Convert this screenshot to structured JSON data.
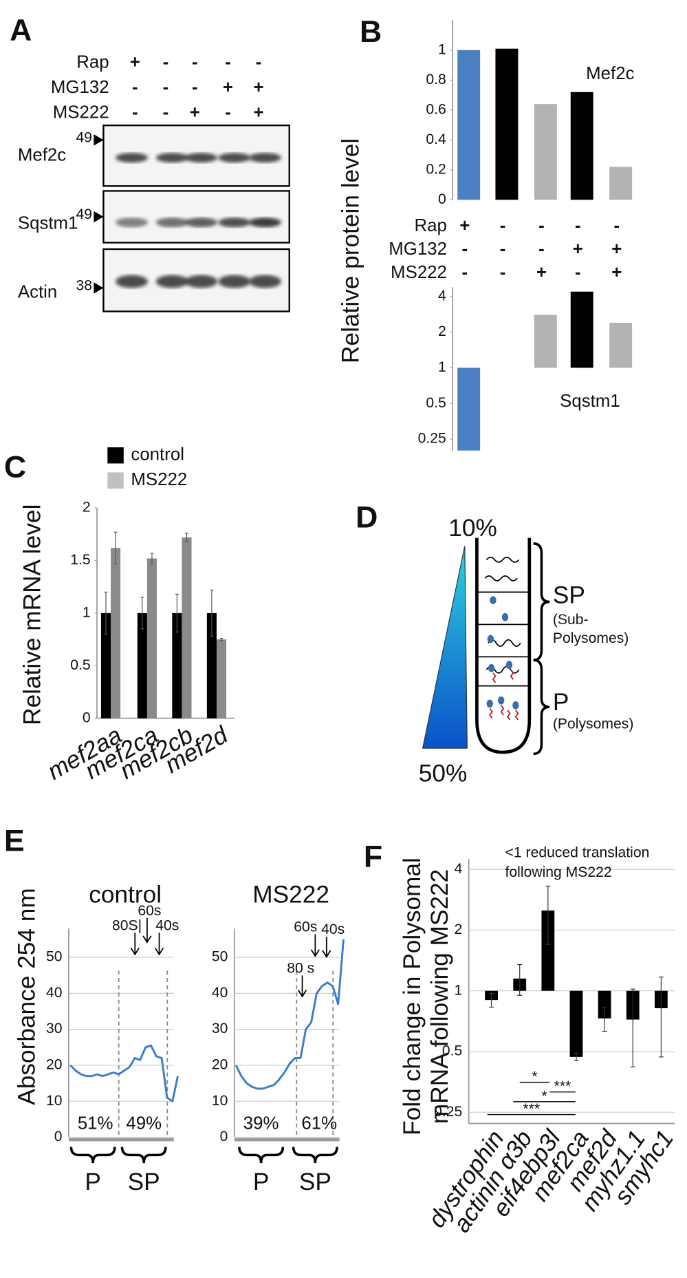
{
  "panel_labels": [
    "A",
    "B",
    "C",
    "D",
    "E",
    "F"
  ],
  "blot": {
    "conditions": [
      {
        "name": "Rap",
        "signs": [
          "+",
          "-",
          "-",
          "-",
          "-"
        ]
      },
      {
        "name": "MG132",
        "signs": [
          "-",
          "-",
          "-",
          "+",
          "+"
        ]
      },
      {
        "name": "MS222",
        "signs": [
          "-",
          "-",
          "+",
          "-",
          "+"
        ]
      }
    ],
    "panels": [
      {
        "name": "Mef2c",
        "marker": "49"
      },
      {
        "name": "Sqstm1",
        "marker": "49"
      },
      {
        "name": "Actin",
        "marker": "38"
      }
    ]
  },
  "panel_b": {
    "ylabel": "Relative protein level",
    "conditions": [
      {
        "name": "Rap",
        "signs": [
          "+",
          "-",
          "-",
          "-",
          "-"
        ]
      },
      {
        "name": "MG132",
        "signs": [
          "-",
          "-",
          "-",
          "+",
          "+"
        ]
      },
      {
        "name": "MS222",
        "signs": [
          "-",
          "-",
          "+",
          "-",
          "+"
        ]
      }
    ]
  },
  "diagram": {
    "top": "10%",
    "bottom": "50%",
    "groups": [
      {
        "name": "SP",
        "detail": [
          "(Sub-",
          "Polysomes)"
        ]
      },
      {
        "name": "P",
        "detail": [
          "(Polysomes)"
        ]
      }
    ]
  },
  "chart_data": [
    {
      "type": "bar",
      "title": "Mef2c",
      "values": [
        1,
        1.01,
        0.64,
        0.72,
        0.22
      ],
      "colors": [
        "#4a7fc1",
        "#000000",
        "#b3b3b3",
        "#000000",
        "#b3b3b3"
      ],
      "ylim": [
        0,
        1.2
      ],
      "yticks": [
        0,
        0.2,
        0.4,
        0.6,
        0.8,
        1
      ]
    },
    {
      "type": "bar",
      "title": "Sqstm1",
      "log_scale": true,
      "values": [
        0.2,
        1,
        2.8,
        4.4,
        2.4
      ],
      "colors": [
        "#4a7fc1",
        "#000000",
        "#b3b3b3",
        "#000000",
        "#b3b3b3"
      ],
      "ylim": [
        0.2,
        4.8
      ],
      "yticks": [
        0.25,
        0.5,
        1,
        2,
        4
      ]
    },
    {
      "type": "grouped_bar",
      "ylabel": "Relative mRNA level",
      "categories": [
        "mef2aa",
        "mef2ca",
        "mef2cb",
        "mef2d"
      ],
      "series": [
        {
          "name": "control",
          "color": "#000000",
          "values": [
            1,
            1,
            1,
            1
          ],
          "errors": [
            0.2,
            0.15,
            0.18,
            0.22
          ]
        },
        {
          "name": "MS222",
          "color": "#8a8a8a",
          "values": [
            1.62,
            1.52,
            1.72,
            0.75
          ],
          "errors": [
            0.15,
            0.05,
            0.04,
            0.01
          ]
        }
      ],
      "ylim": [
        0,
        2
      ],
      "yticks": [
        0,
        0.5,
        1,
        1.5,
        2
      ]
    },
    {
      "type": "line",
      "title": "control",
      "ylabel": "Absorbance 254 nm",
      "color": "#3d7cc9",
      "values": [
        20,
        18.5,
        17.5,
        17,
        17,
        17.5,
        17,
        17.5,
        18,
        17.5,
        18.5,
        19.5,
        22,
        21.5,
        25,
        25.5,
        22.5,
        22,
        11,
        10,
        17
      ],
      "annotations": [
        "80S|",
        "60s",
        "40s"
      ],
      "regions": [
        "P",
        "SP"
      ],
      "region_values": [
        51,
        49
      ],
      "region_value_labels": [
        "51%",
        "49%"
      ],
      "ylim": [
        0,
        58
      ],
      "yticks": [
        0,
        10,
        20,
        30,
        40,
        50
      ],
      "grid": true
    },
    {
      "type": "line",
      "title": "MS222",
      "color": "#3d7cc9",
      "values": [
        20,
        17,
        15,
        14,
        13.5,
        13.5,
        14,
        14.5,
        16,
        18,
        20.5,
        22,
        22,
        30,
        32,
        40,
        42,
        43,
        42,
        37,
        55
      ],
      "annotations": [
        "80 s",
        "60s",
        "40s"
      ],
      "regions": [
        "P",
        "SP"
      ],
      "region_values": [
        39,
        61
      ],
      "region_value_labels": [
        "39%",
        "61%"
      ],
      "ylim": [
        0,
        58
      ],
      "yticks": [
        0,
        10,
        20,
        30,
        40,
        50
      ],
      "grid": true
    },
    {
      "type": "bar",
      "log_scale": true,
      "ylabel": [
        "Fold change in Polysomal",
        "mRNA following MS222"
      ],
      "annotation": [
        "<1 reduced translation",
        "following MS222"
      ],
      "categories": [
        "dystrophin",
        "actinin α3b",
        "eif4ebp3l",
        "mef2ca",
        "mef2d",
        "myhz1.1",
        "smyhc1"
      ],
      "values": [
        0.9,
        1.15,
        2.5,
        0.47,
        0.73,
        0.72,
        0.82
      ],
      "errors": [
        0.07,
        0.2,
        0.8,
        0.02,
        0.1,
        0.3,
        0.35
      ],
      "color": "#000000",
      "significance": [
        "*",
        "***",
        "*",
        "***"
      ],
      "ylim": [
        0.22,
        4.5
      ],
      "yticks": [
        0.25,
        0.5,
        1,
        2,
        4
      ],
      "grid": true
    }
  ]
}
